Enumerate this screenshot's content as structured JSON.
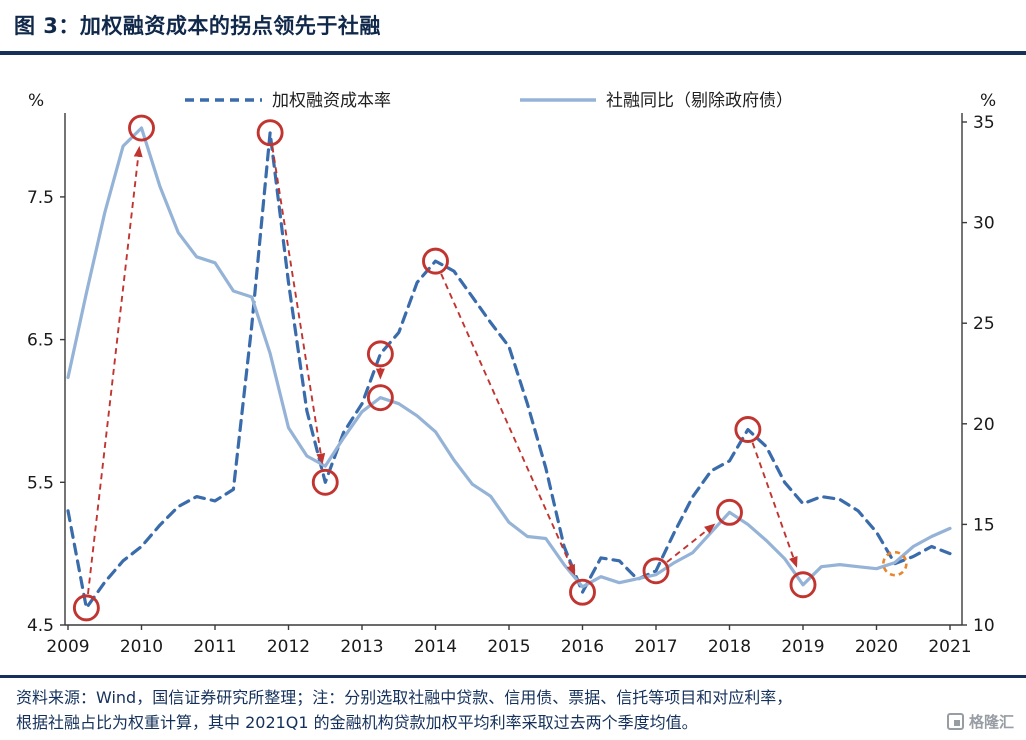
{
  "header": {
    "title": "图 3：加权融资成本的拐点领先于社融"
  },
  "chart_data": {
    "type": "line",
    "title": "加权融资成本的拐点领先于社融",
    "left_axis": {
      "unit": "%",
      "ticks": [
        4.5,
        5.5,
        6.5,
        7.5
      ],
      "range": [
        4.5,
        8.07
      ]
    },
    "right_axis": {
      "unit": "%",
      "ticks": [
        10,
        15,
        20,
        25,
        30,
        35
      ],
      "range": [
        10,
        35
      ]
    },
    "x_axis": {
      "ticks": [
        2009,
        2010,
        2011,
        2012,
        2013,
        2014,
        2015,
        2016,
        2017,
        2018,
        2019,
        2020,
        2021
      ]
    },
    "grid": "off",
    "legend_position": "top",
    "x": [
      2009.0,
      2009.25,
      2009.5,
      2009.75,
      2010.0,
      2010.25,
      2010.5,
      2010.75,
      2011.0,
      2011.25,
      2011.5,
      2011.75,
      2012.0,
      2012.25,
      2012.5,
      2012.75,
      2013.0,
      2013.25,
      2013.5,
      2013.75,
      2014.0,
      2014.25,
      2014.5,
      2014.75,
      2015.0,
      2015.25,
      2015.5,
      2015.75,
      2016.0,
      2016.25,
      2016.5,
      2016.75,
      2017.0,
      2017.25,
      2017.5,
      2017.75,
      2018.0,
      2018.25,
      2018.5,
      2018.75,
      2019.0,
      2019.25,
      2019.5,
      2019.75,
      2020.0,
      2020.25,
      2020.5,
      2020.75,
      2021.0
    ],
    "series": [
      {
        "name": "加权融资成本率",
        "axis": "left",
        "style": "dashed",
        "color": "#3a6bab",
        "values": [
          5.3,
          4.62,
          4.8,
          4.95,
          5.05,
          5.2,
          5.33,
          5.4,
          5.37,
          5.45,
          6.6,
          7.95,
          6.9,
          6.0,
          5.5,
          5.85,
          6.05,
          6.4,
          6.55,
          6.9,
          7.05,
          6.98,
          6.8,
          6.62,
          6.45,
          6.05,
          5.6,
          5.05,
          4.73,
          4.97,
          4.95,
          4.82,
          4.88,
          5.15,
          5.4,
          5.58,
          5.65,
          5.87,
          5.75,
          5.5,
          5.35,
          5.4,
          5.38,
          5.3,
          5.15,
          4.93,
          4.98,
          5.05,
          5.0
        ]
      },
      {
        "name": "社融同比（剔除政府债）",
        "axis": "right",
        "style": "solid",
        "color": "#95b3d7",
        "values": [
          22.3,
          26.5,
          30.5,
          33.8,
          34.7,
          31.8,
          29.5,
          28.3,
          28.0,
          26.6,
          26.3,
          23.5,
          19.8,
          18.4,
          17.9,
          19.3,
          20.6,
          21.3,
          21.0,
          20.4,
          19.6,
          18.2,
          17.0,
          16.4,
          15.1,
          14.4,
          14.3,
          13.0,
          11.9,
          12.4,
          12.1,
          12.3,
          12.5,
          13.1,
          13.6,
          14.6,
          15.6,
          15.0,
          14.2,
          13.3,
          12.0,
          12.9,
          13.0,
          12.9,
          12.8,
          13.1,
          13.9,
          14.4,
          14.8
        ]
      }
    ],
    "markers": [
      {
        "x": 2009.25,
        "value": 4.62,
        "axis": "left"
      },
      {
        "x": 2010.0,
        "value": 34.7,
        "axis": "right"
      },
      {
        "x": 2011.75,
        "value": 7.95,
        "axis": "left"
      },
      {
        "x": 2012.5,
        "value": 5.5,
        "axis": "left"
      },
      {
        "x": 2013.25,
        "value": 6.4,
        "axis": "left"
      },
      {
        "x": 2013.25,
        "value": 21.3,
        "axis": "right"
      },
      {
        "x": 2014.0,
        "value": 7.05,
        "axis": "left"
      },
      {
        "x": 2016.0,
        "value": 4.73,
        "axis": "left"
      },
      {
        "x": 2017.0,
        "value": 4.88,
        "axis": "left"
      },
      {
        "x": 2018.0,
        "value": 15.6,
        "axis": "right"
      },
      {
        "x": 2018.25,
        "value": 5.87,
        "axis": "left"
      },
      {
        "x": 2019.0,
        "value": 12.0,
        "axis": "right"
      },
      {
        "x": 2020.25,
        "value": 4.93,
        "axis": "left",
        "highlight": true
      }
    ],
    "arrows": [
      [
        0,
        1
      ],
      [
        2,
        3
      ],
      [
        4,
        5
      ],
      [
        6,
        7
      ],
      [
        8,
        9
      ],
      [
        10,
        11
      ]
    ],
    "colors": {
      "marker": "#c13531",
      "arrow": "#c13531",
      "highlight": "#e8862c",
      "axis_line": "#3a3a3a"
    }
  },
  "footer": {
    "note_line1": "资料来源：Wind，国信证券研究所整理；注：分别选取社融中贷款、信用债、票据、信托等项目和对应利率，",
    "note_line2": "根据社融占比为权重计算，其中 2021Q1 的金融机构贷款加权平均利率采取过去两个季度均值。",
    "logo_text": "格隆汇"
  }
}
